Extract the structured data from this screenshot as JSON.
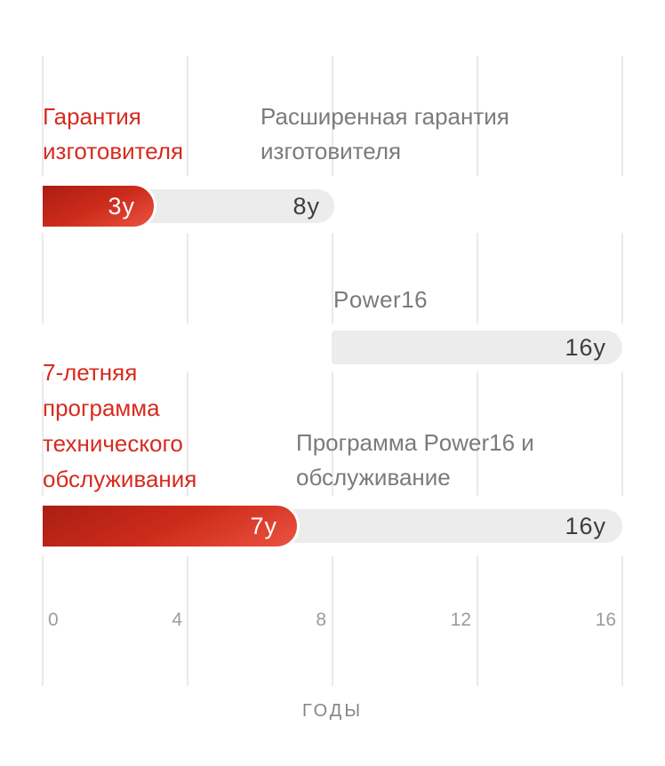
{
  "chart_data": {
    "type": "bar",
    "variant": "horizontal-timeline",
    "title": "",
    "xlabel": "ГОДЫ",
    "ylabel": "",
    "xlim": [
      0,
      16
    ],
    "x_ticks": [
      "0",
      "4",
      "8",
      "12",
      "16"
    ],
    "grid": true,
    "legend": false,
    "unit_suffix": "y",
    "series": [
      {
        "name": "Гарантия изготовителя",
        "start": 0,
        "end": 3,
        "value_label": "3y",
        "style": "red"
      },
      {
        "name": "Расширенная гарантия изготовителя",
        "start": 0,
        "end": 8,
        "value_label": "8y",
        "style": "gray"
      },
      {
        "name": "Power16",
        "start": 8,
        "end": 16,
        "value_label": "16y",
        "style": "gray"
      },
      {
        "name": "7-летняя программа технического обслуживания",
        "start": 0,
        "end": 7,
        "value_label": "7y",
        "style": "red"
      },
      {
        "name": "Программа Power16 и обслуживание",
        "start": 0,
        "end": 16,
        "value_label": "16y",
        "style": "gray"
      }
    ]
  },
  "display": {
    "warranty_red_lines": [
      "Гарантия",
      "изготовителя"
    ],
    "warranty_gray_lines": [
      "Расширенная гарантия",
      "изготовителя"
    ],
    "power16_label": "Power16",
    "service_red_lines": [
      "7-летняя",
      "программа",
      "технического",
      "обслуживания"
    ],
    "service_gray_lines": [
      "Программа Power16 и",
      "обслуживание"
    ]
  },
  "colors": {
    "red_gradient_dark": "#aa1e13",
    "red_gradient_mid": "#cc2b1b",
    "red_gradient_bright": "#ec5340",
    "red_label_text": "#d62b1f",
    "gray_bar": "#ececec",
    "gray_bar_text": "#3d3d3d",
    "gray_label_text": "#7b7b7b",
    "axis_tick_text": "#9c9c9c",
    "axis_title_text": "#868686",
    "gridline": "#eaeaea",
    "background": "#ffffff"
  }
}
